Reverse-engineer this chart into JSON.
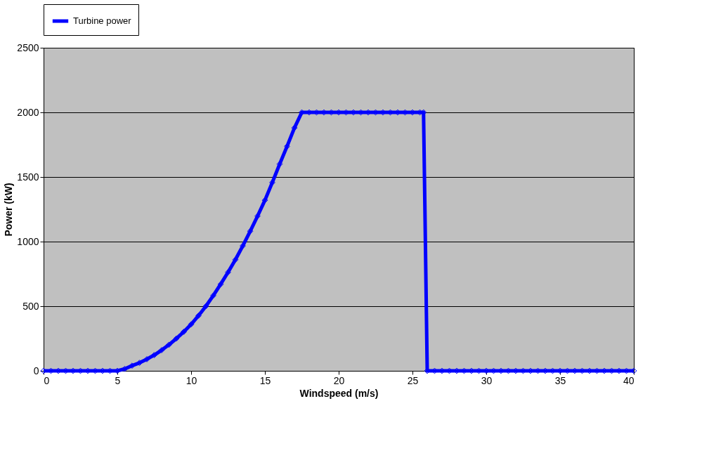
{
  "chart_data": {
    "type": "line",
    "xlabel": "Windspeed (m/s)",
    "ylabel": "Power (kW)",
    "x": [
      0,
      0.5,
      1,
      1.5,
      2,
      2.5,
      3,
      3.5,
      4,
      4.5,
      5,
      5.5,
      6,
      6.5,
      7,
      7.5,
      8,
      8.5,
      9,
      9.5,
      10,
      10.5,
      11,
      11.5,
      12,
      12.5,
      13,
      13.5,
      14,
      14.5,
      15,
      15.5,
      16,
      16.5,
      17,
      17.5,
      18,
      18.5,
      19,
      19.5,
      20,
      20.5,
      21,
      21.5,
      22,
      22.5,
      23,
      23.5,
      24,
      24.5,
      25,
      25.5,
      25.75,
      26,
      26.5,
      27,
      27.5,
      28,
      28.5,
      29,
      29.5,
      30,
      30.5,
      31,
      31.5,
      32,
      32.5,
      33,
      33.5,
      34,
      34.5,
      35,
      35.5,
      36,
      36.5,
      37,
      37.5,
      38,
      38.5,
      39,
      39.5,
      40
    ],
    "series": [
      {
        "name": "Turbine power",
        "color": "#0000ff",
        "values": [
          0,
          0,
          0,
          0,
          0,
          0,
          0,
          0,
          0,
          0,
          0,
          15,
          40,
          62,
          90,
          122,
          160,
          202,
          250,
          302,
          360,
          427,
          500,
          582,
          670,
          762,
          860,
          967,
          1080,
          1197,
          1320,
          1457,
          1600,
          1737,
          1880,
          2000,
          2000,
          2000,
          2000,
          2000,
          2000,
          2000,
          2000,
          2000,
          2000,
          2000,
          2000,
          2000,
          2000,
          2000,
          2000,
          2000,
          2000,
          0,
          0,
          0,
          0,
          0,
          0,
          0,
          0,
          0,
          0,
          0,
          0,
          0,
          0,
          0,
          0,
          0,
          0,
          0,
          0,
          0,
          0,
          0,
          0,
          0,
          0,
          0,
          0,
          0
        ]
      }
    ],
    "xlim": [
      0,
      40
    ],
    "xticks": [
      0,
      5,
      10,
      15,
      20,
      25,
      30,
      35,
      40
    ],
    "ylim": [
      0,
      2500
    ],
    "yticks": [
      0,
      500,
      1000,
      1500,
      2000,
      2500
    ],
    "grid": "y",
    "legend": "top",
    "marker": "diamond",
    "line_style": "solid"
  }
}
